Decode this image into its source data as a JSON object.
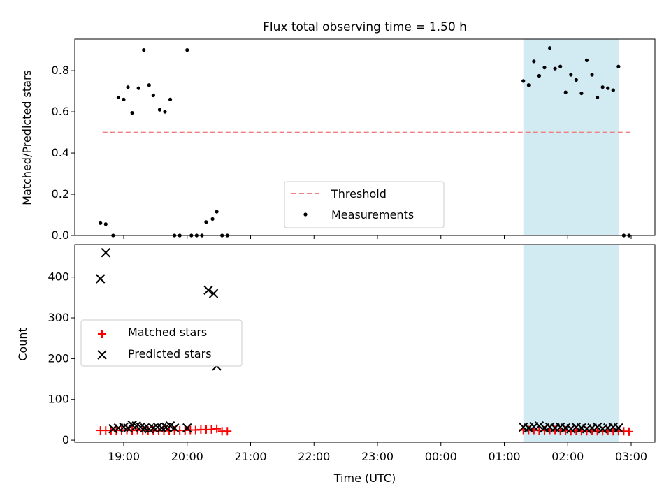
{
  "chart_data": [
    {
      "type": "scatter",
      "title": "Flux total observing time = 1.50 h",
      "xlabel": "",
      "ylabel": "Matched/Predicted stars",
      "x_axis": "time (UTC), evening 18:00 continuing past midnight",
      "ylim": [
        0,
        0.95
      ],
      "yticks": [
        0.0,
        0.2,
        0.4,
        0.6,
        0.8
      ],
      "ytick_labels": [
        "0.0",
        "0.2",
        "0.4",
        "0.6",
        "0.8"
      ],
      "highlight_span": {
        "start": "01:18",
        "end": "02:48",
        "color": "#add8e6"
      },
      "threshold": {
        "name": "Threshold",
        "value": 0.5,
        "x_range": [
          "18:40",
          "03:00"
        ],
        "color": "#f08080",
        "style": "dashed"
      },
      "legend": {
        "position": "lower-center",
        "entries": [
          "Threshold",
          "Measurements"
        ]
      },
      "series": [
        {
          "name": "Measurements",
          "color": "#000000",
          "marker": "dot",
          "points": [
            [
              "18:38",
              0.06
            ],
            [
              "18:43",
              0.055
            ],
            [
              "18:50",
              0.0
            ],
            [
              "18:55",
              0.67
            ],
            [
              "19:00",
              0.66
            ],
            [
              "19:04",
              0.72
            ],
            [
              "19:08",
              0.595
            ],
            [
              "19:14",
              0.715
            ],
            [
              "19:19",
              0.9
            ],
            [
              "19:24",
              0.73
            ],
            [
              "19:28",
              0.68
            ],
            [
              "19:34",
              0.61
            ],
            [
              "19:39",
              0.6
            ],
            [
              "19:44",
              0.66
            ],
            [
              "19:48",
              0.0
            ],
            [
              "19:53",
              0.0
            ],
            [
              "20:00",
              0.9
            ],
            [
              "20:04",
              0.0
            ],
            [
              "20:09",
              0.0
            ],
            [
              "20:14",
              0.0
            ],
            [
              "20:18",
              0.065
            ],
            [
              "20:24",
              0.08
            ],
            [
              "20:28",
              0.115
            ],
            [
              "20:33",
              0.0
            ],
            [
              "20:38",
              0.0
            ],
            [
              "01:18",
              0.75
            ],
            [
              "01:23",
              0.73
            ],
            [
              "01:28",
              0.845
            ],
            [
              "01:33",
              0.775
            ],
            [
              "01:38",
              0.815
            ],
            [
              "01:43",
              0.91
            ],
            [
              "01:48",
              0.81
            ],
            [
              "01:53",
              0.82
            ],
            [
              "01:58",
              0.695
            ],
            [
              "02:03",
              0.78
            ],
            [
              "02:08",
              0.755
            ],
            [
              "02:13",
              0.69
            ],
            [
              "02:18",
              0.85
            ],
            [
              "02:23",
              0.78
            ],
            [
              "02:28",
              0.67
            ],
            [
              "02:33",
              0.72
            ],
            [
              "02:38",
              0.715
            ],
            [
              "02:43",
              0.705
            ],
            [
              "02:48",
              0.82
            ],
            [
              "02:53",
              0.0
            ],
            [
              "02:58",
              0.0
            ]
          ]
        }
      ]
    },
    {
      "type": "scatter",
      "title": "",
      "xlabel": "Time (UTC)",
      "ylabel": "Count",
      "ylim": [
        0,
        480
      ],
      "yticks": [
        0,
        100,
        200,
        300,
        400
      ],
      "ytick_labels": [
        "0",
        "100",
        "200",
        "300",
        "400"
      ],
      "xticks": [
        "19:00",
        "20:00",
        "21:00",
        "22:00",
        "23:00",
        "00:00",
        "01:00",
        "02:00",
        "03:00"
      ],
      "highlight_span": {
        "start": "01:18",
        "end": "02:48",
        "color": "#add8e6"
      },
      "legend": {
        "position": "center-left",
        "entries": [
          "Matched stars",
          "Predicted stars"
        ]
      },
      "series": [
        {
          "name": "Matched stars",
          "color": "#ff0000",
          "marker": "plus",
          "points": [
            [
              "18:38",
              24
            ],
            [
              "18:43",
              24
            ],
            [
              "18:48",
              24
            ],
            [
              "18:53",
              24
            ],
            [
              "18:58",
              24
            ],
            [
              "19:03",
              25
            ],
            [
              "19:08",
              24
            ],
            [
              "19:13",
              25
            ],
            [
              "19:18",
              24
            ],
            [
              "19:23",
              24
            ],
            [
              "19:28",
              24
            ],
            [
              "19:33",
              23
            ],
            [
              "19:38",
              23
            ],
            [
              "19:43",
              24
            ],
            [
              "19:48",
              24
            ],
            [
              "19:53",
              24
            ],
            [
              "19:58",
              24
            ],
            [
              "20:03",
              25
            ],
            [
              "20:08",
              25
            ],
            [
              "20:13",
              26
            ],
            [
              "20:18",
              26
            ],
            [
              "20:23",
              26
            ],
            [
              "20:28",
              28
            ],
            [
              "20:33",
              22
            ],
            [
              "20:38",
              22
            ],
            [
              "01:18",
              25
            ],
            [
              "01:23",
              25
            ],
            [
              "01:28",
              25
            ],
            [
              "01:33",
              24
            ],
            [
              "01:38",
              24
            ],
            [
              "01:43",
              25
            ],
            [
              "01:48",
              25
            ],
            [
              "01:53",
              24
            ],
            [
              "01:58",
              24
            ],
            [
              "02:03",
              22
            ],
            [
              "02:08",
              23
            ],
            [
              "02:13",
              22
            ],
            [
              "02:18",
              22
            ],
            [
              "02:23",
              23
            ],
            [
              "02:28",
              22
            ],
            [
              "02:33",
              22
            ],
            [
              "02:38",
              23
            ],
            [
              "02:43",
              22
            ],
            [
              "02:48",
              22
            ],
            [
              "02:53",
              22
            ],
            [
              "02:58",
              21
            ]
          ]
        },
        {
          "name": "Predicted stars",
          "color": "#000000",
          "marker": "x",
          "points": [
            [
              "18:38",
              396
            ],
            [
              "18:43",
              460
            ],
            [
              "18:50",
              28
            ],
            [
              "18:55",
              30
            ],
            [
              "19:00",
              32
            ],
            [
              "19:04",
              30
            ],
            [
              "19:08",
              37
            ],
            [
              "19:12",
              35
            ],
            [
              "19:16",
              32
            ],
            [
              "19:20",
              30
            ],
            [
              "19:24",
              28
            ],
            [
              "19:28",
              30
            ],
            [
              "19:32",
              32
            ],
            [
              "19:36",
              30
            ],
            [
              "19:40",
              32
            ],
            [
              "19:44",
              35
            ],
            [
              "19:48",
              30
            ],
            [
              "20:00",
              30
            ],
            [
              "20:20",
              368
            ],
            [
              "20:25",
              360
            ],
            [
              "20:28",
              182
            ],
            [
              "01:18",
              32
            ],
            [
              "01:23",
              30
            ],
            [
              "01:28",
              33
            ],
            [
              "01:33",
              35
            ],
            [
              "01:38",
              30
            ],
            [
              "01:43",
              32
            ],
            [
              "01:48",
              30
            ],
            [
              "01:53",
              32
            ],
            [
              "01:58",
              30
            ],
            [
              "02:03",
              28
            ],
            [
              "02:08",
              32
            ],
            [
              "02:13",
              30
            ],
            [
              "02:18",
              28
            ],
            [
              "02:23",
              30
            ],
            [
              "02:28",
              32
            ],
            [
              "02:33",
              28
            ],
            [
              "02:38",
              30
            ],
            [
              "02:43",
              32
            ],
            [
              "02:48",
              30
            ]
          ]
        }
      ]
    }
  ]
}
